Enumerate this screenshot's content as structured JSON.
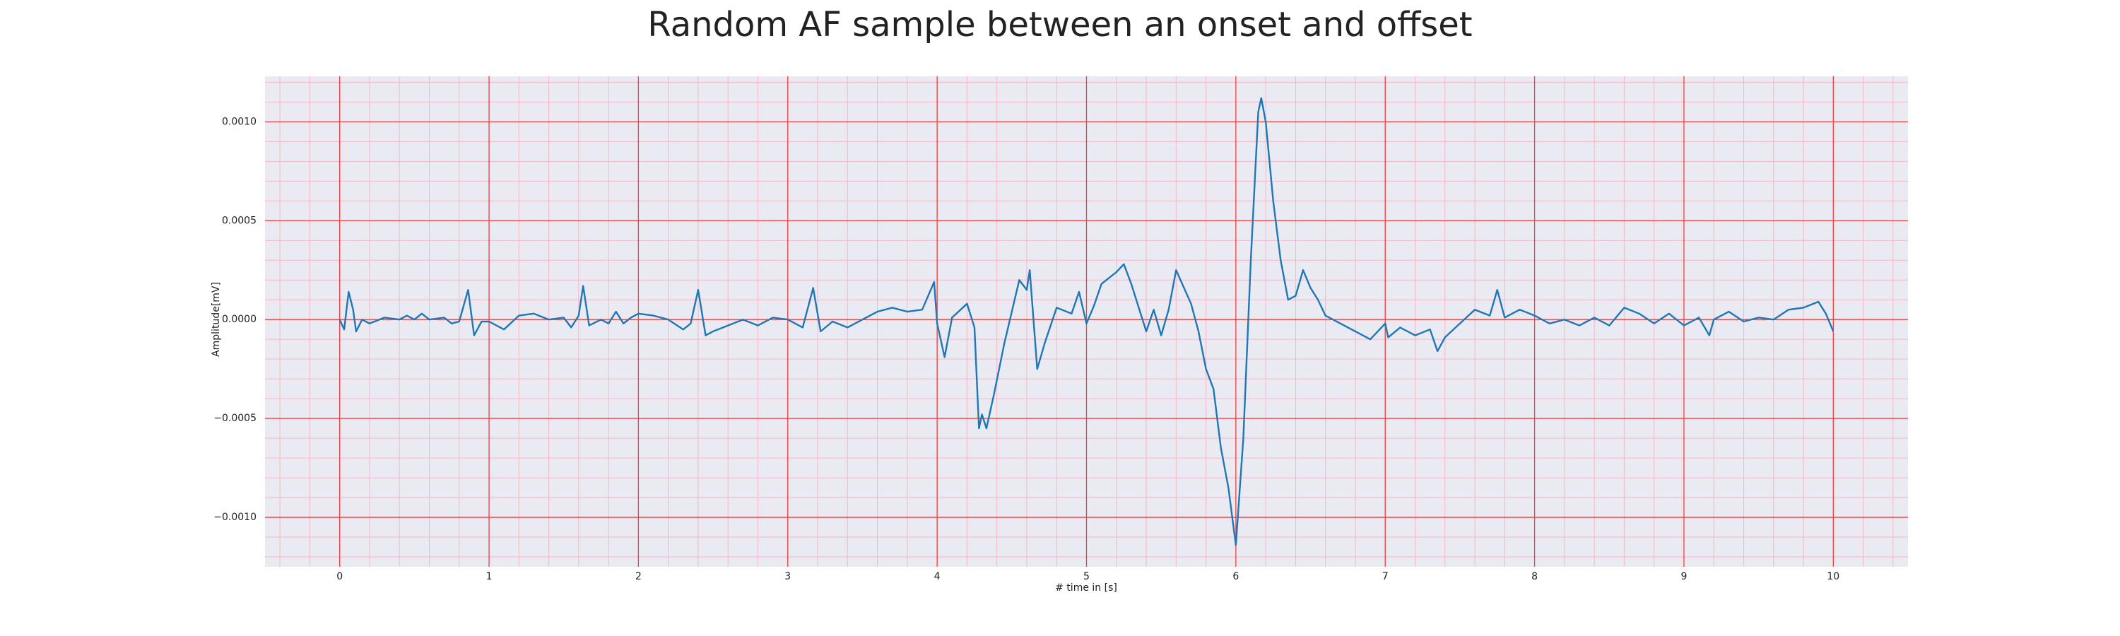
{
  "chart_data": {
    "type": "line",
    "title": "Random AF sample between an onset and offset",
    "xlabel": "# time in [s]",
    "ylabel": "Amplitude[mV]",
    "x": [
      0,
      0.03,
      0.06,
      0.09,
      0.11,
      0.15,
      0.2,
      0.3,
      0.4,
      0.45,
      0.5,
      0.55,
      0.6,
      0.7,
      0.75,
      0.8,
      0.86,
      0.9,
      0.95,
      1.0,
      1.1,
      1.2,
      1.3,
      1.4,
      1.5,
      1.55,
      1.6,
      1.63,
      1.67,
      1.75,
      1.8,
      1.85,
      1.9,
      1.95,
      2.0,
      2.1,
      2.2,
      2.3,
      2.35,
      2.4,
      2.45,
      2.5,
      2.6,
      2.7,
      2.8,
      2.9,
      3.0,
      3.1,
      3.17,
      3.22,
      3.3,
      3.4,
      3.5,
      3.6,
      3.7,
      3.8,
      3.9,
      3.98,
      4.0,
      4.05,
      4.1,
      4.2,
      4.25,
      4.28,
      4.3,
      4.33,
      4.38,
      4.45,
      4.55,
      4.6,
      4.62,
      4.67,
      4.72,
      4.8,
      4.9,
      4.95,
      5.0,
      5.05,
      5.1,
      5.2,
      5.25,
      5.3,
      5.4,
      5.45,
      5.5,
      5.55,
      5.6,
      5.7,
      5.75,
      5.8,
      5.85,
      5.9,
      5.95,
      6.0,
      6.05,
      6.1,
      6.15,
      6.17,
      6.2,
      6.25,
      6.3,
      6.35,
      6.4,
      6.45,
      6.5,
      6.55,
      6.6,
      6.7,
      6.8,
      6.9,
      7.0,
      7.02,
      7.1,
      7.2,
      7.3,
      7.35,
      7.4,
      7.5,
      7.6,
      7.7,
      7.75,
      7.8,
      7.9,
      8.0,
      8.1,
      8.2,
      8.3,
      8.4,
      8.5,
      8.6,
      8.7,
      8.8,
      8.9,
      9.0,
      9.1,
      9.17,
      9.2,
      9.3,
      9.4,
      9.5,
      9.6,
      9.7,
      9.8,
      9.9,
      9.95,
      10.0
    ],
    "series": [
      {
        "name": "Amplitude[mV]",
        "color": "#1f77b4",
        "values": [
          0,
          -5e-05,
          0.00014,
          5e-05,
          -6e-05,
          0,
          -2e-05,
          1e-05,
          0,
          2e-05,
          0,
          3e-05,
          0,
          1e-05,
          -2e-05,
          -1e-05,
          0.00015,
          -8e-05,
          -1e-05,
          -1e-05,
          -5e-05,
          2e-05,
          3e-05,
          0,
          1e-05,
          -4e-05,
          2e-05,
          0.00017,
          -3e-05,
          0,
          -2e-05,
          4e-05,
          -2e-05,
          1e-05,
          3e-05,
          2e-05,
          0,
          -5e-05,
          -2e-05,
          0.00015,
          -8e-05,
          -6e-05,
          -3e-05,
          0,
          -3e-05,
          1e-05,
          0,
          -4e-05,
          0.00016,
          -6e-05,
          -1e-05,
          -4e-05,
          0,
          4e-05,
          6e-05,
          4e-05,
          5e-05,
          0.00019,
          -2e-05,
          -0.00019,
          1e-05,
          8e-05,
          -4e-05,
          -0.00055,
          -0.00048,
          -0.00055,
          -0.00038,
          -0.00012,
          0.0002,
          0.00015,
          0.00025,
          -0.00025,
          -0.00012,
          6e-05,
          3e-05,
          0.00014,
          -2e-05,
          7e-05,
          0.00018,
          0.00024,
          0.00028,
          0.00018,
          -6e-05,
          5e-05,
          -8e-05,
          5e-05,
          0.00025,
          8e-05,
          -6e-05,
          -0.00025,
          -0.00035,
          -0.00065,
          -0.00085,
          -0.00114,
          -0.0006,
          0.0003,
          0.00105,
          0.00112,
          0.001,
          0.0006,
          0.0003,
          0.0001,
          0.00012,
          0.00025,
          0.00016,
          0.0001,
          2e-05,
          -2e-05,
          -6e-05,
          -0.0001,
          -2e-05,
          -9e-05,
          -4e-05,
          -8e-05,
          -5e-05,
          -0.00016,
          -9e-05,
          -2e-05,
          5e-05,
          2e-05,
          0.00015,
          1e-05,
          5e-05,
          2e-05,
          -2e-05,
          0,
          -3e-05,
          1e-05,
          -3e-05,
          6e-05,
          3e-05,
          -2e-05,
          3e-05,
          -3e-05,
          1e-05,
          -8e-05,
          0,
          4e-05,
          -1e-05,
          1e-05,
          0,
          5e-05,
          6e-05,
          9e-05,
          3e-05,
          -6e-05
        ]
      }
    ],
    "xlim": [
      -0.5,
      10.5
    ],
    "xticks": [
      0,
      1,
      2,
      3,
      4,
      5,
      6,
      7,
      8,
      9,
      10
    ],
    "ylim": [
      -0.00125,
      0.00123
    ],
    "yticks": [
      {
        "value": -0.001,
        "label": "−0.0010"
      },
      {
        "value": -0.0005,
        "label": "−0.0005"
      },
      {
        "value": 0,
        "label": "0.0000"
      },
      {
        "value": 0.0005,
        "label": "0.0005"
      },
      {
        "value": 0.001,
        "label": "0.0010"
      }
    ],
    "grid": true,
    "minor_grid": true
  }
}
